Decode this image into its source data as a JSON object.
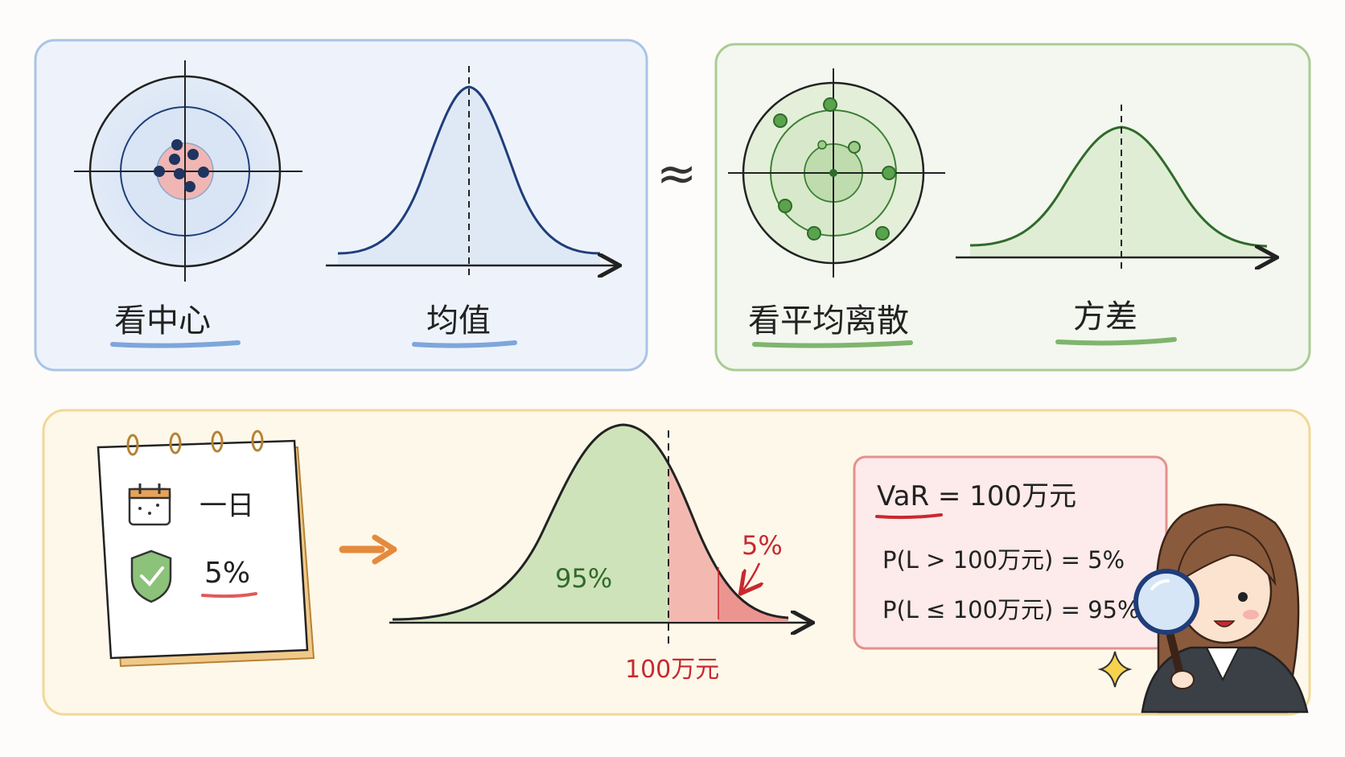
{
  "colors": {
    "blue_panel_bg": "#eef3fb",
    "blue_panel_border": "#a9c4e6",
    "blue_curve": "#1f3d7a",
    "green_panel_bg": "#f3f7ef",
    "green_panel_border": "#a8cc95",
    "green_accent": "#2f6b2a",
    "yellow_panel_bg": "#fdf8ea",
    "yellow_panel_border": "#f1d896",
    "red_accent": "#c8292f",
    "orange_arrow": "#e58a3c"
  },
  "mean_panel": {
    "left_label": "看中心",
    "right_label": "均值"
  },
  "approx_symbol": "≈",
  "variance_panel": {
    "left_label": "看平均离散",
    "right_label": "方差"
  },
  "var_panel": {
    "notepad": {
      "period_icon": "calendar-icon",
      "period_text": "一日",
      "confidence_icon": "shield-check-icon",
      "tail_text": "5%"
    },
    "chart": {
      "body_label": "95%",
      "tail_label": "5%",
      "threshold_label": "100万元"
    },
    "formula": {
      "main": "VaR = 100万元",
      "line1": "P(L > 100万元) = 5%",
      "line2": "P(L ≤ 100万元) = 95%"
    },
    "character_icons": [
      "magnifier-icon",
      "sparkle-icon"
    ]
  }
}
